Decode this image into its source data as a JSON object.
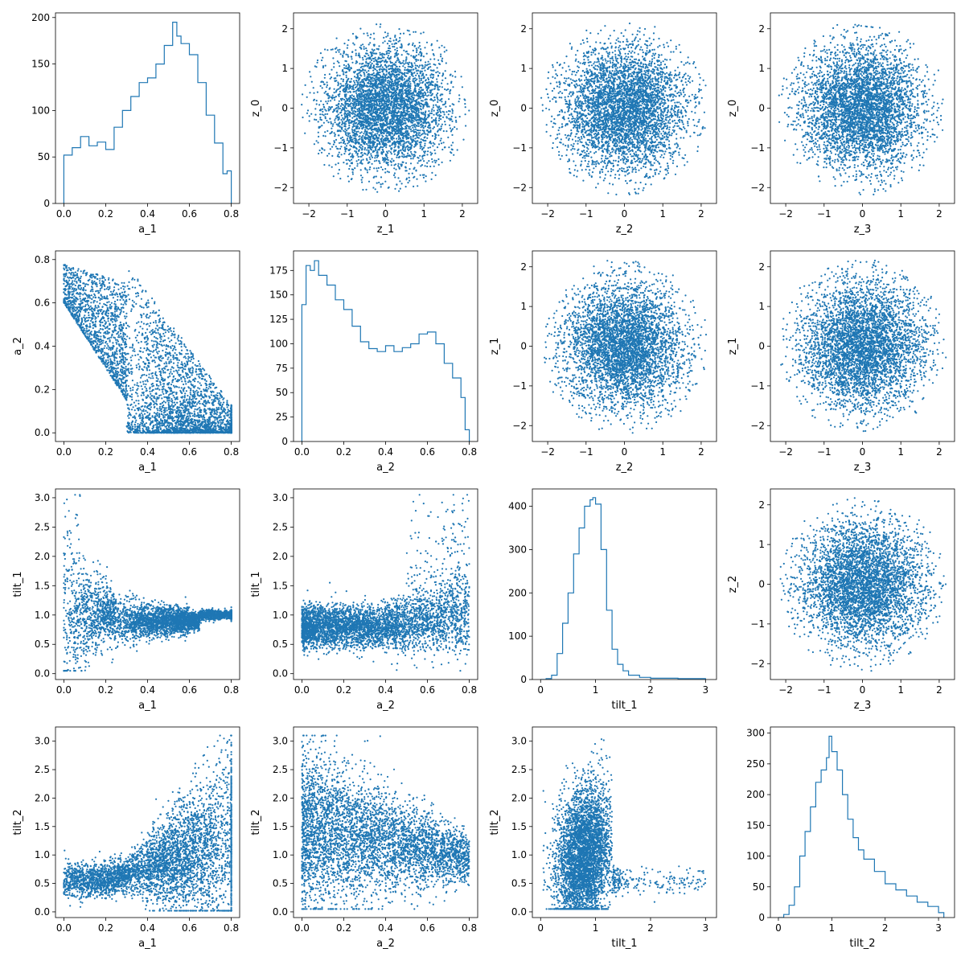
{
  "figure": {
    "rows": 4,
    "cols": 4,
    "accent": "#1f77b4"
  },
  "chart_data": [
    {
      "type": "histogram",
      "row": 0,
      "col": 0,
      "xlabel": "a_1",
      "ylabel": "",
      "xlim": [
        -0.04,
        0.84
      ],
      "ylim": [
        0,
        205
      ],
      "xticks": [
        0.0,
        0.2,
        0.4,
        0.6,
        0.8
      ],
      "xticklabels": [
        "0.0",
        "0.2",
        "0.4",
        "0.6",
        "0.8"
      ],
      "yticks": [
        0,
        50,
        100,
        150,
        200
      ],
      "yticklabels": [
        "0",
        "50",
        "100",
        "150",
        "200"
      ],
      "x": [
        0.0,
        0.04,
        0.08,
        0.12,
        0.16,
        0.2,
        0.24,
        0.28,
        0.32,
        0.36,
        0.4,
        0.44,
        0.48,
        0.52,
        0.54,
        0.56,
        0.6,
        0.64,
        0.68,
        0.72,
        0.76,
        0.78,
        0.8
      ],
      "y": [
        52,
        60,
        72,
        62,
        66,
        58,
        82,
        100,
        115,
        130,
        135,
        150,
        170,
        195,
        180,
        172,
        160,
        130,
        95,
        65,
        32,
        35,
        0
      ]
    },
    {
      "type": "scatter",
      "row": 0,
      "col": 1,
      "xlabel": "z_1",
      "ylabel": "z_0",
      "xlim": [
        -2.4,
        2.4
      ],
      "ylim": [
        -2.4,
        2.4
      ],
      "xticks": [
        -2,
        -1,
        0,
        1,
        2
      ],
      "xticklabels": [
        "−2",
        "−1",
        "0",
        "1",
        "2"
      ],
      "yticks": [
        -2,
        -1,
        0,
        1,
        2
      ],
      "yticklabels": [
        "−2",
        "−1",
        "0",
        "1",
        "2"
      ],
      "distribution": "disk",
      "radius": 2.2
    },
    {
      "type": "scatter",
      "row": 0,
      "col": 2,
      "xlabel": "z_2",
      "ylabel": "z_0",
      "xlim": [
        -2.4,
        2.4
      ],
      "ylim": [
        -2.4,
        2.4
      ],
      "xticks": [
        -2,
        -1,
        0,
        1,
        2
      ],
      "xticklabels": [
        "−2",
        "−1",
        "0",
        "1",
        "2"
      ],
      "yticks": [
        -2,
        -1,
        0,
        1,
        2
      ],
      "yticklabels": [
        "−2",
        "−1",
        "0",
        "1",
        "2"
      ],
      "distribution": "disk",
      "radius": 2.2
    },
    {
      "type": "scatter",
      "row": 0,
      "col": 3,
      "xlabel": "z_3",
      "ylabel": "z_0",
      "xlim": [
        -2.4,
        2.4
      ],
      "ylim": [
        -2.4,
        2.4
      ],
      "xticks": [
        -2,
        -1,
        0,
        1,
        2
      ],
      "xticklabels": [
        "−2",
        "−1",
        "0",
        "1",
        "2"
      ],
      "yticks": [
        -2,
        -1,
        0,
        1,
        2
      ],
      "yticklabels": [
        "−2",
        "−1",
        "0",
        "1",
        "2"
      ],
      "distribution": "disk",
      "radius": 2.2
    },
    {
      "type": "scatter",
      "row": 1,
      "col": 0,
      "xlabel": "a_1",
      "ylabel": "a_2",
      "xlim": [
        -0.04,
        0.84
      ],
      "ylim": [
        -0.04,
        0.84
      ],
      "xticks": [
        0.0,
        0.2,
        0.4,
        0.6,
        0.8
      ],
      "xticklabels": [
        "0.0",
        "0.2",
        "0.4",
        "0.6",
        "0.8"
      ],
      "yticks": [
        0.0,
        0.2,
        0.4,
        0.6,
        0.8
      ],
      "yticklabels": [
        "0.0",
        "0.2",
        "0.4",
        "0.6",
        "0.8"
      ],
      "distribution": "a1_a2"
    },
    {
      "type": "histogram",
      "row": 1,
      "col": 1,
      "xlabel": "a_2",
      "ylabel": "",
      "xlim": [
        -0.04,
        0.84
      ],
      "ylim": [
        0,
        195
      ],
      "xticks": [
        0.0,
        0.2,
        0.4,
        0.6,
        0.8
      ],
      "xticklabels": [
        "0.0",
        "0.2",
        "0.4",
        "0.6",
        "0.8"
      ],
      "yticks": [
        0,
        25,
        50,
        75,
        100,
        125,
        150,
        175
      ],
      "yticklabels": [
        "0",
        "25",
        "50",
        "75",
        "100",
        "125",
        "150",
        "175"
      ],
      "x": [
        0.0,
        0.02,
        0.04,
        0.06,
        0.08,
        0.12,
        0.16,
        0.2,
        0.24,
        0.28,
        0.32,
        0.36,
        0.4,
        0.44,
        0.48,
        0.52,
        0.56,
        0.6,
        0.64,
        0.68,
        0.72,
        0.76,
        0.78,
        0.8
      ],
      "y": [
        140,
        180,
        175,
        185,
        170,
        160,
        145,
        135,
        118,
        102,
        95,
        92,
        98,
        92,
        96,
        100,
        110,
        112,
        100,
        80,
        65,
        45,
        12,
        0
      ]
    },
    {
      "type": "scatter",
      "row": 1,
      "col": 2,
      "xlabel": "z_2",
      "ylabel": "z_1",
      "xlim": [
        -2.4,
        2.4
      ],
      "ylim": [
        -2.4,
        2.4
      ],
      "xticks": [
        -2,
        -1,
        0,
        1,
        2
      ],
      "xticklabels": [
        "−2",
        "−1",
        "0",
        "1",
        "2"
      ],
      "yticks": [
        -2,
        -1,
        0,
        1,
        2
      ],
      "yticklabels": [
        "−2",
        "−1",
        "0",
        "1",
        "2"
      ],
      "distribution": "disk",
      "radius": 2.2
    },
    {
      "type": "scatter",
      "row": 1,
      "col": 3,
      "xlabel": "z_3",
      "ylabel": "z_1",
      "xlim": [
        -2.4,
        2.4
      ],
      "ylim": [
        -2.4,
        2.4
      ],
      "xticks": [
        -2,
        -1,
        0,
        1,
        2
      ],
      "xticklabels": [
        "−2",
        "−1",
        "0",
        "1",
        "2"
      ],
      "yticks": [
        -2,
        -1,
        0,
        1,
        2
      ],
      "yticklabels": [
        "−2",
        "−1",
        "0",
        "1",
        "2"
      ],
      "distribution": "disk",
      "radius": 2.2
    },
    {
      "type": "scatter",
      "row": 2,
      "col": 0,
      "xlabel": "a_1",
      "ylabel": "tilt_1",
      "xlim": [
        -0.04,
        0.84
      ],
      "ylim": [
        -0.1,
        3.15
      ],
      "xticks": [
        0.0,
        0.2,
        0.4,
        0.6,
        0.8
      ],
      "xticklabels": [
        "0.0",
        "0.2",
        "0.4",
        "0.6",
        "0.8"
      ],
      "yticks": [
        0.0,
        0.5,
        1.0,
        1.5,
        2.0,
        2.5,
        3.0
      ],
      "yticklabels": [
        "0.0",
        "0.5",
        "1.0",
        "1.5",
        "2.0",
        "2.5",
        "3.0"
      ],
      "distribution": "a1_tilt1"
    },
    {
      "type": "scatter",
      "row": 2,
      "col": 1,
      "xlabel": "a_2",
      "ylabel": "tilt_1",
      "xlim": [
        -0.04,
        0.84
      ],
      "ylim": [
        -0.1,
        3.15
      ],
      "xticks": [
        0.0,
        0.2,
        0.4,
        0.6,
        0.8
      ],
      "xticklabels": [
        "0.0",
        "0.2",
        "0.4",
        "0.6",
        "0.8"
      ],
      "yticks": [
        0.0,
        0.5,
        1.0,
        1.5,
        2.0,
        2.5,
        3.0
      ],
      "yticklabels": [
        "0.0",
        "0.5",
        "1.0",
        "1.5",
        "2.0",
        "2.5",
        "3.0"
      ],
      "distribution": "a2_tilt1"
    },
    {
      "type": "histogram",
      "row": 2,
      "col": 2,
      "xlabel": "tilt_1",
      "ylabel": "",
      "xlim": [
        -0.15,
        3.2
      ],
      "ylim": [
        0,
        440
      ],
      "xticks": [
        0,
        1,
        2,
        3
      ],
      "xticklabels": [
        "0",
        "1",
        "2",
        "3"
      ],
      "yticks": [
        0,
        100,
        200,
        300,
        400
      ],
      "yticklabels": [
        "0",
        "100",
        "200",
        "300",
        "400"
      ],
      "x": [
        0.0,
        0.1,
        0.2,
        0.3,
        0.4,
        0.5,
        0.6,
        0.7,
        0.8,
        0.9,
        0.95,
        1.0,
        1.1,
        1.2,
        1.3,
        1.4,
        1.5,
        1.6,
        1.8,
        2.0,
        2.5,
        3.0
      ],
      "y": [
        0,
        2,
        10,
        60,
        130,
        200,
        290,
        350,
        400,
        415,
        420,
        405,
        300,
        160,
        70,
        35,
        20,
        10,
        5,
        3,
        2,
        0
      ]
    },
    {
      "type": "scatter",
      "row": 2,
      "col": 3,
      "xlabel": "z_3",
      "ylabel": "z_2",
      "xlim": [
        -2.4,
        2.4
      ],
      "ylim": [
        -2.4,
        2.4
      ],
      "xticks": [
        -2,
        -1,
        0,
        1,
        2
      ],
      "xticklabels": [
        "−2",
        "−1",
        "0",
        "1",
        "2"
      ],
      "yticks": [
        -2,
        -1,
        0,
        1,
        2
      ],
      "yticklabels": [
        "−2",
        "−1",
        "0",
        "1",
        "2"
      ],
      "distribution": "disk",
      "radius": 2.2
    },
    {
      "type": "scatter",
      "row": 3,
      "col": 0,
      "xlabel": "a_1",
      "ylabel": "tilt_2",
      "xlim": [
        -0.04,
        0.84
      ],
      "ylim": [
        -0.1,
        3.25
      ],
      "xticks": [
        0.0,
        0.2,
        0.4,
        0.6,
        0.8
      ],
      "xticklabels": [
        "0.0",
        "0.2",
        "0.4",
        "0.6",
        "0.8"
      ],
      "yticks": [
        0.0,
        0.5,
        1.0,
        1.5,
        2.0,
        2.5,
        3.0
      ],
      "yticklabels": [
        "0.0",
        "0.5",
        "1.0",
        "1.5",
        "2.0",
        "2.5",
        "3.0"
      ],
      "distribution": "a1_tilt2"
    },
    {
      "type": "scatter",
      "row": 3,
      "col": 1,
      "xlabel": "a_2",
      "ylabel": "tilt_2",
      "xlim": [
        -0.04,
        0.84
      ],
      "ylim": [
        -0.1,
        3.25
      ],
      "xticks": [
        0.0,
        0.2,
        0.4,
        0.6,
        0.8
      ],
      "xticklabels": [
        "0.0",
        "0.2",
        "0.4",
        "0.6",
        "0.8"
      ],
      "yticks": [
        0.0,
        0.5,
        1.0,
        1.5,
        2.0,
        2.5,
        3.0
      ],
      "yticklabels": [
        "0.0",
        "0.5",
        "1.0",
        "1.5",
        "2.0",
        "2.5",
        "3.0"
      ],
      "distribution": "a2_tilt2"
    },
    {
      "type": "scatter",
      "row": 3,
      "col": 2,
      "xlabel": "tilt_1",
      "ylabel": "tilt_2",
      "xlim": [
        -0.15,
        3.2
      ],
      "ylim": [
        -0.1,
        3.25
      ],
      "xticks": [
        0,
        1,
        2,
        3
      ],
      "xticklabels": [
        "0",
        "1",
        "2",
        "3"
      ],
      "yticks": [
        0.0,
        0.5,
        1.0,
        1.5,
        2.0,
        2.5,
        3.0
      ],
      "yticklabels": [
        "0.0",
        "0.5",
        "1.0",
        "1.5",
        "2.0",
        "2.5",
        "3.0"
      ],
      "distribution": "tilt1_tilt2"
    },
    {
      "type": "histogram",
      "row": 3,
      "col": 3,
      "xlabel": "tilt_2",
      "ylabel": "",
      "xlim": [
        -0.15,
        3.3
      ],
      "ylim": [
        0,
        310
      ],
      "xticks": [
        0,
        1,
        2,
        3
      ],
      "xticklabels": [
        "0",
        "1",
        "2",
        "3"
      ],
      "yticks": [
        0,
        50,
        100,
        150,
        200,
        250,
        300
      ],
      "yticklabels": [
        "0",
        "50",
        "100",
        "150",
        "200",
        "250",
        "300"
      ],
      "x": [
        0.0,
        0.1,
        0.2,
        0.3,
        0.4,
        0.5,
        0.6,
        0.7,
        0.8,
        0.9,
        0.95,
        1.0,
        1.1,
        1.2,
        1.3,
        1.4,
        1.5,
        1.6,
        1.8,
        2.0,
        2.2,
        2.4,
        2.6,
        2.8,
        3.0,
        3.1
      ],
      "y": [
        0,
        5,
        20,
        50,
        100,
        140,
        180,
        220,
        240,
        260,
        295,
        270,
        240,
        200,
        160,
        130,
        110,
        95,
        75,
        55,
        45,
        35,
        25,
        18,
        8,
        0
      ]
    }
  ]
}
